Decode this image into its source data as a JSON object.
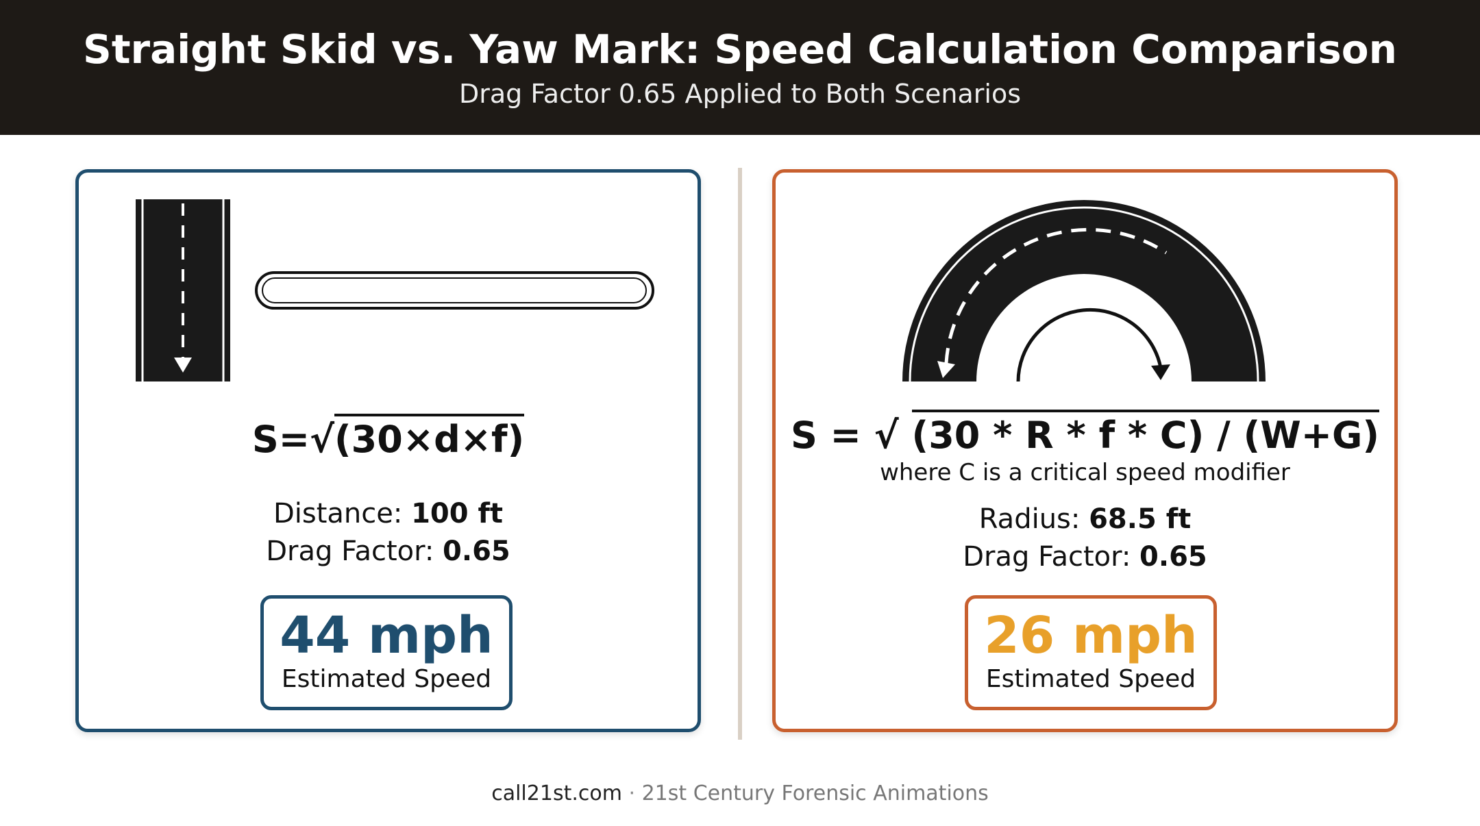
{
  "header": {
    "title": "Straight Skid vs. Yaw Mark: Speed Calculation Comparison",
    "subtitle": "Drag Factor 0.65 Applied to Both Scenarios"
  },
  "panels": [
    {
      "formula": {
        "lhs": "S=√",
        "radicand": "(30×d×f)"
      },
      "params": [
        {
          "label": "Distance:",
          "value": "100 ft"
        },
        {
          "label": "Drag Factor:",
          "value": "0.65"
        }
      ],
      "result": {
        "value": "44 mph",
        "label": "Estimated Speed"
      }
    },
    {
      "formula": {
        "lhs": "S = √",
        "radicand": "(30 * R * f * C) / (W+G)"
      },
      "note": "where C is a critical speed modifier",
      "params": [
        {
          "label": "Radius:",
          "value": "68.5 ft"
        },
        {
          "label": "Drag Factor:",
          "value": "0.65"
        }
      ],
      "result": {
        "value": "26 mph",
        "label": "Estimated Speed"
      }
    }
  ],
  "footer": {
    "site": "call21st.com",
    "separator": "·",
    "company": "21st Century Forensic Animations"
  }
}
